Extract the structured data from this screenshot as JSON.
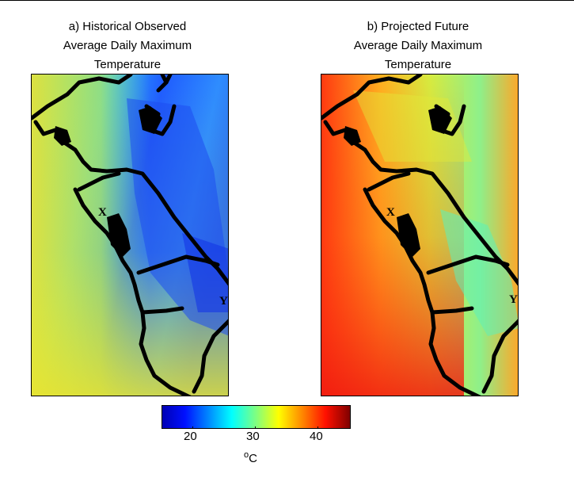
{
  "panel_a": {
    "title_lines": [
      "a) Historical Observed",
      "Average Daily Maximum",
      "Temperature"
    ],
    "markers": {
      "x": "X",
      "y": "Y"
    }
  },
  "panel_b": {
    "title_lines": [
      "b) Projected Future",
      "Average Daily Maximum",
      "Temperature"
    ],
    "markers": {
      "x": "X",
      "y": "Y"
    }
  },
  "colorbar": {
    "ticks": [
      "20",
      "30",
      "40"
    ],
    "unit_symbol": "o",
    "unit_letter": "C",
    "range": [
      15,
      45
    ],
    "colormap": "jet"
  }
}
